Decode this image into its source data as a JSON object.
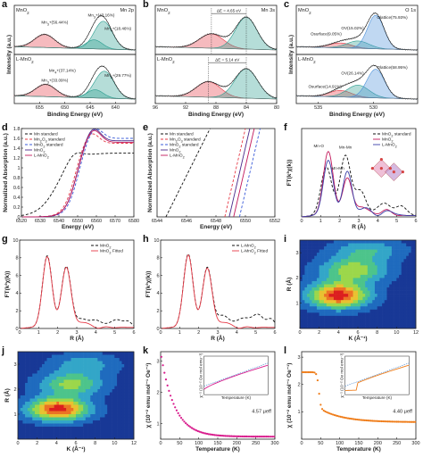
{
  "chart_data": [
    {
      "panel": "a",
      "type": "line",
      "xlabel": "Binding Energy (eV)",
      "ylabel": "Intensity (a.u.)",
      "xlim": [
        660,
        636
      ],
      "xticks": [
        655,
        650,
        645,
        640
      ],
      "subpanels": [
        {
          "name": "MnO2",
          "corner": "Mn 2p",
          "annotations": [
            {
              "text": "Mn3+(56.44%)",
              "x": 652,
              "y": 0.7
            },
            {
              "text": "Mn3+(43.16%)",
              "x": 642.8,
              "y": 0.88
            },
            {
              "text": "Mn4+(18.46%)",
              "x": 639.5,
              "y": 0.55
            }
          ],
          "peaks": [
            {
              "center": 654.0,
              "width": 2.0,
              "height": 0.32,
              "color": "#e63946"
            },
            {
              "center": 642.4,
              "width": 1.8,
              "height": 0.68,
              "color": "#2a9d8f"
            },
            {
              "center": 644.2,
              "width": 1.6,
              "height": 0.22,
              "color": "#2a9d8f"
            }
          ]
        },
        {
          "name": "L-MnO2",
          "corner": "",
          "annotations": [
            {
              "text": "Mn4+(37.14%)",
              "x": 650.5,
              "y": 0.72
            },
            {
              "text": "Mn3+(33.09%)",
              "x": 652,
              "y": 0.48
            },
            {
              "text": "Mn3+(29.77%)",
              "x": 639.5,
              "y": 0.6
            }
          ],
          "peaks": [
            {
              "center": 653.8,
              "width": 2.0,
              "height": 0.3,
              "color": "#e63946"
            },
            {
              "center": 642.2,
              "width": 1.9,
              "height": 0.66,
              "color": "#2a9d8f"
            },
            {
              "center": 644.0,
              "width": 1.6,
              "height": 0.2,
              "color": "#2a9d8f"
            }
          ]
        }
      ]
    },
    {
      "panel": "b",
      "type": "line",
      "xlabel": "Binding Energy (eV)",
      "ylabel": "",
      "xlim": [
        96,
        80
      ],
      "xticks": [
        96,
        92,
        88,
        84,
        80
      ],
      "subpanels": [
        {
          "name": "MnO2",
          "corner": "Mn 3s",
          "delta": "ΔE = 4.65 eV",
          "peaks": [
            {
              "center": 88.6,
              "width": 1.6,
              "height": 0.35,
              "color": "#e63946"
            },
            {
              "center": 84.0,
              "width": 1.4,
              "height": 0.78,
              "color": "#2a9d8f"
            }
          ]
        },
        {
          "name": "L-MnO2",
          "corner": "",
          "delta": "ΔE = 5.14 eV",
          "peaks": [
            {
              "center": 89.0,
              "width": 1.6,
              "height": 0.38,
              "color": "#e63946"
            },
            {
              "center": 84.0,
              "width": 1.5,
              "height": 0.72,
              "color": "#2a9d8f"
            }
          ]
        }
      ]
    },
    {
      "panel": "c",
      "type": "line",
      "xlabel": "Binding Energy (eV)",
      "ylabel": "Intensity (a.u.)",
      "xlim": [
        537,
        526
      ],
      "xticks": [
        535,
        530
      ],
      "subpanels": [
        {
          "name": "MnO2",
          "corner": "O 1s",
          "annotations": [
            {
              "text": "Osurface(9.05%)",
              "x": 534.3,
              "y": 0.42
            },
            {
              "text": "OV(15.02%)",
              "x": 531.9,
              "y": 0.56
            },
            {
              "text": "Olattice(75.93%)",
              "x": 528.3,
              "y": 0.82
            }
          ],
          "peaks": [
            {
              "center": 533.0,
              "width": 1.0,
              "height": 0.12,
              "color": "#e63946"
            },
            {
              "center": 531.4,
              "width": 1.0,
              "height": 0.18,
              "color": "#2a9d8f"
            },
            {
              "center": 529.8,
              "width": 0.75,
              "height": 0.82,
              "color": "#4a90d9"
            }
          ]
        },
        {
          "name": "L-MnO2",
          "corner": "",
          "annotations": [
            {
              "text": "OV(26.14%)",
              "x": 531.9,
              "y": 0.66
            },
            {
              "text": "Osurface(14.91%)",
              "x": 534.4,
              "y": 0.33
            },
            {
              "text": "Olattice(58.95%)",
              "x": 528.3,
              "y": 0.8
            }
          ],
          "peaks": [
            {
              "center": 533.0,
              "width": 1.0,
              "height": 0.16,
              "color": "#e63946"
            },
            {
              "center": 531.4,
              "width": 1.0,
              "height": 0.3,
              "color": "#2a9d8f"
            },
            {
              "center": 529.8,
              "width": 0.8,
              "height": 0.7,
              "color": "#4a90d9"
            }
          ]
        }
      ]
    },
    {
      "panel": "d",
      "type": "line",
      "xlabel": "Energy (eV)",
      "ylabel": "Normalized Absorption (a.u.)",
      "xlim": [
        6520,
        6580
      ],
      "ylim": [
        0,
        1.8
      ],
      "xticks": [
        6520,
        6530,
        6540,
        6550,
        6560,
        6570,
        6580
      ],
      "yticks": [
        0.0,
        0.2,
        0.4,
        0.6,
        0.8,
        1.0,
        1.2,
        1.4,
        1.6,
        1.8
      ],
      "series": [
        {
          "name": "Mn standard",
          "color": "#111111",
          "dash": "3,2",
          "edge": 6539,
          "width": 5,
          "top": 1.3,
          "wl": 0.15
        },
        {
          "name": "Mn2O3 standard",
          "color": "#e63946",
          "dash": "3,2",
          "edge": 6548,
          "width": 3,
          "top": 1.5,
          "wl": 0.25
        },
        {
          "name": "MnO2 standard",
          "color": "#3a5bd9",
          "dash": "3,2",
          "edge": 6550,
          "width": 3,
          "top": 1.6,
          "wl": 0.25
        },
        {
          "name": "MnO2",
          "color": "#4b2a8a",
          "dash": "",
          "edge": 6549,
          "width": 3,
          "top": 1.55,
          "wl": 0.3
        },
        {
          "name": "L-MnO2",
          "color": "#c2185b",
          "dash": "",
          "edge": 6549,
          "width": 3,
          "top": 1.52,
          "wl": 0.3
        }
      ]
    },
    {
      "panel": "e",
      "type": "line",
      "xlabel": "Energy (eV)",
      "ylabel": "Normalized Absorption (a.u.)",
      "xlim": [
        6544,
        6552
      ],
      "ylim": [
        0,
        1
      ],
      "xticks": [
        6544,
        6546,
        6548,
        6550,
        6552
      ],
      "series": [
        {
          "name": "Mn standard",
          "color": "#111111",
          "dash": "3,2",
          "x0": 6544.6,
          "x1": 6547.6
        },
        {
          "name": "Mn2O3 standard",
          "color": "#e63946",
          "dash": "3,2",
          "x0": 6548.6,
          "x1": 6550.0
        },
        {
          "name": "MnO2 standard",
          "color": "#3a5bd9",
          "dash": "3,2",
          "x0": 6549.6,
          "x1": 6551.0
        },
        {
          "name": "MnO2",
          "color": "#4b2a8a",
          "dash": "",
          "x0": 6548.9,
          "x1": 6550.3
        },
        {
          "name": "L-MnO2",
          "color": "#c2185b",
          "dash": "",
          "x0": 6549.2,
          "x1": 6550.6
        }
      ]
    },
    {
      "panel": "f",
      "type": "line",
      "xlabel": "R (Å)",
      "ylabel": "FT(k³χ(k))",
      "xlim": [
        0,
        6
      ],
      "ylim": [
        0,
        8
      ],
      "xticks": [
        0,
        1,
        2,
        3,
        4,
        5,
        6
      ],
      "annotations": [
        {
          "text": "Mn-O",
          "x": 0.9,
          "y": 6.3
        },
        {
          "text": "Mn-Mn",
          "x": 2.3,
          "y": 6.2
        },
        {
          "text": "Mn-Mn",
          "x": 1.9,
          "y": 4.3
        }
      ],
      "series": [
        {
          "name": "MnO2 standard",
          "color": "#111111",
          "dash": "3,2",
          "peaks": [
            [
              1.3,
              4.4,
              0.28
            ],
            [
              2.3,
              5.4,
              0.28
            ],
            [
              3.1,
              2.2,
              0.3
            ],
            [
              4.3,
              1.2,
              0.3
            ],
            [
              5.2,
              0.9,
              0.3
            ]
          ]
        },
        {
          "name": "MnO2",
          "color": "#c2185b",
          "dash": "",
          "peaks": [
            [
              1.4,
              5.8,
              0.26
            ],
            [
              2.4,
              3.4,
              0.25
            ],
            [
              3.2,
              0.8,
              0.3
            ],
            [
              4.4,
              0.5,
              0.3
            ]
          ]
        },
        {
          "name": "L-MnO2",
          "color": "#3a3fa8",
          "dash": "",
          "peaks": [
            [
              1.4,
              5.0,
              0.26
            ],
            [
              2.4,
              4.0,
              0.24
            ],
            [
              3.3,
              0.7,
              0.3
            ],
            [
              4.6,
              0.4,
              0.3
            ]
          ]
        }
      ]
    },
    {
      "panel": "g",
      "type": "line",
      "xlabel": "R (Å)",
      "ylabel": "FT(k³χ(k))",
      "xlim": [
        0,
        6
      ],
      "ylim": [
        0,
        10
      ],
      "xticks": [
        0,
        1,
        2,
        3,
        4,
        5,
        6
      ],
      "yticks": [
        0,
        2,
        4,
        6,
        8,
        10
      ],
      "series": [
        {
          "name": "MnO2",
          "color": "#111111",
          "dash": "3,2",
          "peaks": [
            [
              1.45,
              8.1,
              0.25
            ],
            [
              2.45,
              6.9,
              0.25
            ],
            [
              3.3,
              1.0,
              0.3
            ],
            [
              4.1,
              0.8,
              0.3
            ],
            [
              5.1,
              0.9,
              0.3
            ],
            [
              5.7,
              0.6,
              0.2
            ]
          ]
        },
        {
          "name": "MnO2 Fitted",
          "color": "#e63946",
          "dash": "",
          "peaks": [
            [
              1.45,
              8.0,
              0.25
            ],
            [
              2.45,
              6.8,
              0.25
            ],
            [
              3.3,
              0.6,
              0.3
            ]
          ]
        }
      ]
    },
    {
      "panel": "h",
      "type": "line",
      "xlabel": "R (Å)",
      "ylabel": "FT(k³χ(k))",
      "xlim": [
        0,
        6
      ],
      "ylim": [
        0,
        10
      ],
      "xticks": [
        0,
        1,
        2,
        3,
        4,
        5,
        6
      ],
      "yticks": [
        0,
        2,
        4,
        6,
        8,
        10
      ],
      "series": [
        {
          "name": "L-MnO2",
          "color": "#111111",
          "dash": "3,2",
          "peaks": [
            [
              1.45,
              8.3,
              0.25
            ],
            [
              2.45,
              6.8,
              0.25
            ],
            [
              3.3,
              1.4,
              0.3
            ],
            [
              4.3,
              1.1,
              0.3
            ],
            [
              5.1,
              1.5,
              0.3
            ],
            [
              5.8,
              0.9,
              0.2
            ]
          ]
        },
        {
          "name": "L-MnO2 Fitted",
          "color": "#e63946",
          "dash": "",
          "peaks": [
            [
              1.45,
              8.2,
              0.25
            ],
            [
              2.45,
              6.7,
              0.25
            ],
            [
              3.3,
              0.6,
              0.3
            ]
          ]
        }
      ]
    },
    {
      "panel": "i",
      "type": "heatmap",
      "xlabel": "K (Å⁻¹)",
      "ylabel": "R (Å)",
      "xlim": [
        0,
        12
      ],
      "ylim": [
        0,
        3.5
      ],
      "xticks": [
        0,
        2,
        4,
        6,
        8,
        10,
        12
      ],
      "yticks": [
        1,
        2,
        3
      ],
      "blobs": [
        [
          4.0,
          1.3,
          2.2,
          0.35,
          1.0
        ],
        [
          5.5,
          2.3,
          2.4,
          0.35,
          0.6
        ],
        [
          7.0,
          3.1,
          2.5,
          0.3,
          0.35
        ]
      ]
    },
    {
      "panel": "j",
      "type": "heatmap",
      "xlabel": "K (Å⁻¹)",
      "ylabel": "R (Å)",
      "xlim": [
        0,
        12
      ],
      "ylim": [
        0,
        3.5
      ],
      "xticks": [
        0,
        2,
        4,
        6,
        8,
        10,
        12
      ],
      "yticks": [
        1,
        2,
        3
      ],
      "blobs": [
        [
          4.2,
          1.2,
          2.2,
          0.32,
          1.0
        ],
        [
          5.5,
          2.2,
          2.3,
          0.32,
          0.55
        ],
        [
          6.8,
          3.0,
          2.4,
          0.3,
          0.3
        ]
      ]
    },
    {
      "panel": "k",
      "type": "scatter",
      "xlabel": "Temperature (K)",
      "ylabel": "χ (10⁻² emu mol⁻¹ Oe⁻¹)",
      "xlim": [
        0,
        300
      ],
      "ylim": [
        0.5,
        3.3
      ],
      "xticks": [
        0,
        50,
        100,
        150,
        200,
        250,
        300
      ],
      "yticks": [
        1,
        2,
        3
      ],
      "color": "#d81b8c",
      "annotation": "4.57 μeff",
      "model": {
        "a": 0.58,
        "b": 2.7,
        "c": 36
      },
      "inset": {
        "xlabel": "Temperature (K)",
        "ylabel": "χ⁻¹ (10⁻² Oe mol emu⁻¹)"
      }
    },
    {
      "panel": "l",
      "type": "scatter",
      "xlabel": "Temperature (K)",
      "ylabel": "χ (10⁻² emu mol⁻¹ Oe⁻¹)",
      "xlim": [
        0,
        300
      ],
      "ylim": [
        0,
        3.2
      ],
      "xticks": [
        0,
        50,
        100,
        150,
        200,
        250,
        300
      ],
      "yticks": [
        1,
        2,
        3
      ],
      "color": "#ef7d1a",
      "annotation": "4.40 μeff",
      "model": {
        "plateau": 2.45,
        "drop": 45,
        "a": 0.62,
        "b": 1.1,
        "c": 60
      },
      "inset": {
        "xlabel": "Temperature (K)",
        "ylabel": "χ⁻¹ (10⁻² Oe mol emu⁻¹)"
      }
    }
  ]
}
